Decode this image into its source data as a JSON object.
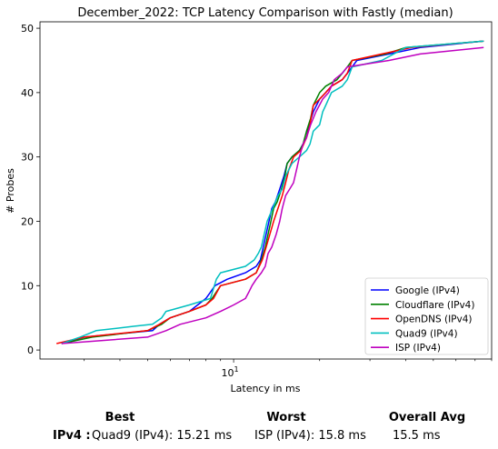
{
  "chart_data": {
    "type": "line",
    "title": "December_2022: TCP Latency Comparison with Fastly (median)",
    "xlabel": "Latency in ms",
    "ylabel": "# Probes",
    "x_scale": "log",
    "xlim": [
      2.1,
      80
    ],
    "ylim": [
      -1.4,
      51
    ],
    "x_ticks": [
      {
        "value": 10,
        "label": "10^1"
      }
    ],
    "y_ticks": [
      0,
      10,
      20,
      30,
      40,
      50
    ],
    "grid": false,
    "legend_position": "lower-right",
    "series": [
      {
        "name": "Google (IPv4)",
        "color": "#0000ff",
        "points": [
          [
            2.5,
            1
          ],
          [
            3,
            2
          ],
          [
            5.2,
            3
          ],
          [
            5.5,
            4
          ],
          [
            6,
            5
          ],
          [
            7,
            6
          ],
          [
            8,
            8
          ],
          [
            8.3,
            9
          ],
          [
            8.6,
            10
          ],
          [
            9.5,
            11
          ],
          [
            11,
            12
          ],
          [
            12,
            13
          ],
          [
            12.4,
            14
          ],
          [
            12.7,
            16
          ],
          [
            13,
            18
          ],
          [
            13.3,
            20
          ],
          [
            13.6,
            22
          ],
          [
            14,
            23
          ],
          [
            14.5,
            25
          ],
          [
            15,
            27
          ],
          [
            15.4,
            29
          ],
          [
            16,
            30
          ],
          [
            17,
            31
          ],
          [
            18,
            33
          ],
          [
            18.4,
            35
          ],
          [
            19,
            37
          ],
          [
            20,
            39
          ],
          [
            21,
            40
          ],
          [
            22,
            41
          ],
          [
            24,
            42
          ],
          [
            25,
            43
          ],
          [
            26,
            44
          ],
          [
            27,
            45
          ],
          [
            35,
            46
          ],
          [
            45,
            47
          ],
          [
            75,
            48
          ]
        ]
      },
      {
        "name": "Cloudflare (IPv4)",
        "color": "#008000",
        "points": [
          [
            2.5,
            1
          ],
          [
            3.2,
            2
          ],
          [
            5,
            3
          ],
          [
            5.6,
            4
          ],
          [
            6,
            5
          ],
          [
            7,
            6
          ],
          [
            8,
            7
          ],
          [
            8.4,
            8
          ],
          [
            9,
            10
          ],
          [
            11,
            11
          ],
          [
            12,
            12
          ],
          [
            12.5,
            14
          ],
          [
            12.9,
            16
          ],
          [
            13.2,
            18
          ],
          [
            13.5,
            20
          ],
          [
            13.8,
            22
          ],
          [
            14.2,
            23
          ],
          [
            14.7,
            25
          ],
          [
            15.1,
            27
          ],
          [
            15.4,
            29
          ],
          [
            16,
            30
          ],
          [
            17,
            31
          ],
          [
            17.5,
            32
          ],
          [
            18,
            34
          ],
          [
            18.6,
            36
          ],
          [
            19,
            38
          ],
          [
            20,
            40
          ],
          [
            21,
            41
          ],
          [
            23,
            42
          ],
          [
            24,
            43
          ],
          [
            25,
            44
          ],
          [
            26,
            45
          ],
          [
            34,
            46
          ],
          [
            40,
            47
          ],
          [
            75,
            48
          ]
        ]
      },
      {
        "name": "OpenDNS (IPv4)",
        "color": "#ff0000",
        "points": [
          [
            2.4,
            1
          ],
          [
            3,
            2
          ],
          [
            5,
            3
          ],
          [
            5.5,
            4
          ],
          [
            6,
            5
          ],
          [
            7,
            6
          ],
          [
            8,
            7
          ],
          [
            8.5,
            8
          ],
          [
            9,
            10
          ],
          [
            11,
            11
          ],
          [
            12,
            12
          ],
          [
            12.6,
            14
          ],
          [
            13,
            16
          ],
          [
            13.4,
            18
          ],
          [
            13.8,
            20
          ],
          [
            14.3,
            22
          ],
          [
            14.8,
            24
          ],
          [
            15.2,
            26
          ],
          [
            15.6,
            28
          ],
          [
            16.2,
            30
          ],
          [
            17.2,
            31
          ],
          [
            18,
            33
          ],
          [
            18.5,
            35
          ],
          [
            19,
            38
          ],
          [
            20,
            39
          ],
          [
            21,
            40
          ],
          [
            22,
            41
          ],
          [
            24,
            42
          ],
          [
            25,
            43
          ],
          [
            26,
            45
          ],
          [
            33,
            46
          ],
          [
            42,
            47
          ],
          [
            75,
            48
          ]
        ]
      },
      {
        "name": "Quad9 (IPv4)",
        "color": "#00bfbf",
        "points": [
          [
            2.5,
            1
          ],
          [
            2.9,
            2
          ],
          [
            3.3,
            3
          ],
          [
            4.5,
            3.7
          ],
          [
            5.2,
            4
          ],
          [
            5.6,
            5
          ],
          [
            5.8,
            6
          ],
          [
            7,
            7
          ],
          [
            8.3,
            8
          ],
          [
            8.7,
            11
          ],
          [
            9,
            12
          ],
          [
            11,
            13
          ],
          [
            11.8,
            14
          ],
          [
            12.2,
            15
          ],
          [
            12.5,
            16
          ],
          [
            12.8,
            18
          ],
          [
            13.1,
            20
          ],
          [
            13.4,
            21
          ],
          [
            13.7,
            22
          ],
          [
            14,
            23
          ],
          [
            14.3,
            24
          ],
          [
            14.8,
            25
          ],
          [
            15.2,
            27
          ],
          [
            15.6,
            28
          ],
          [
            16,
            29
          ],
          [
            17,
            30
          ],
          [
            18,
            31
          ],
          [
            18.5,
            32
          ],
          [
            19,
            34
          ],
          [
            20,
            35
          ],
          [
            20.5,
            37
          ],
          [
            21,
            38
          ],
          [
            22,
            40
          ],
          [
            24,
            41
          ],
          [
            25,
            42
          ],
          [
            26,
            44
          ],
          [
            33,
            45
          ],
          [
            40,
            47
          ],
          [
            75,
            48
          ]
        ]
      },
      {
        "name": "ISP (IPv4)",
        "color": "#bf00bf",
        "points": [
          [
            2.5,
            1
          ],
          [
            5,
            2
          ],
          [
            5.8,
            3
          ],
          [
            6.5,
            4
          ],
          [
            8,
            5
          ],
          [
            9,
            6
          ],
          [
            10,
            7
          ],
          [
            11,
            8
          ],
          [
            11.3,
            9
          ],
          [
            11.6,
            10
          ],
          [
            12,
            11
          ],
          [
            12.5,
            12
          ],
          [
            12.9,
            13
          ],
          [
            13.2,
            15
          ],
          [
            13.6,
            16
          ],
          [
            14.1,
            18
          ],
          [
            14.5,
            20
          ],
          [
            14.8,
            22
          ],
          [
            15.2,
            24
          ],
          [
            15.7,
            25
          ],
          [
            16.2,
            26
          ],
          [
            16.6,
            28
          ],
          [
            17,
            30
          ],
          [
            17.5,
            32
          ],
          [
            18,
            33
          ],
          [
            18.6,
            35
          ],
          [
            19.4,
            37
          ],
          [
            20.5,
            39
          ],
          [
            21.5,
            40
          ],
          [
            22.5,
            42
          ],
          [
            24,
            43
          ],
          [
            25,
            44
          ],
          [
            35,
            45
          ],
          [
            45,
            46
          ],
          [
            75,
            47
          ]
        ]
      }
    ]
  },
  "summary": {
    "headers": {
      "best": "Best",
      "worst": "Worst",
      "overall": "Overall Avg"
    },
    "row_label": "IPv4 :",
    "best": "Quad9 (IPv4): 15.21 ms",
    "worst": "ISP (IPv4): 15.8 ms",
    "overall": "15.5 ms"
  }
}
